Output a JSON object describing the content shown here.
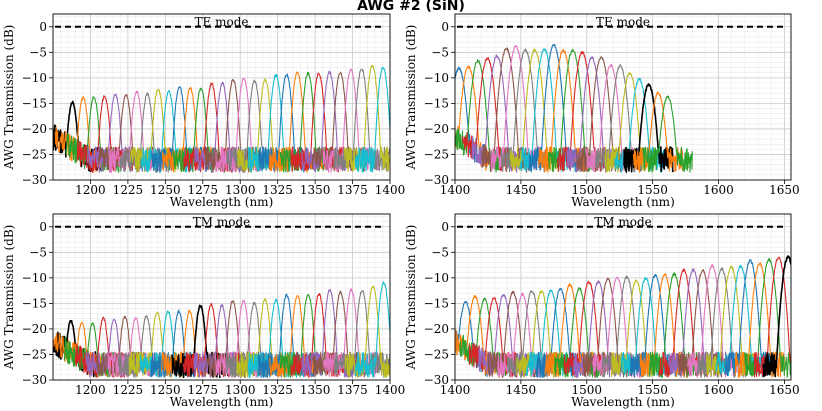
{
  "figure_title": "AWG #2 (SiN)",
  "chart_data": [
    {
      "type": "line",
      "title": "TE mode",
      "xlabel": "Wavelength (nm)",
      "ylabel": "AWG Transmission (dB)",
      "xlim": [
        1175,
        1400
      ],
      "ylim": [
        -30,
        2.5
      ],
      "xticks": [
        1200,
        1225,
        1250,
        1275,
        1300,
        1325,
        1350,
        1375,
        1400
      ],
      "yticks": [
        0,
        -5,
        -10,
        -15,
        -20,
        -25,
        -30
      ],
      "reference_line": 0,
      "channels": {
        "start": 1188,
        "spacing": 7.15,
        "count": 30,
        "width": 2.5,
        "peak_start": -14.5,
        "peak_end": -7.5,
        "edge_roll": 0,
        "highlight": [
          1188
        ],
        "floor": -26
      },
      "series": [
        {
          "name": "channels",
          "peaks": "generated from channels"
        }
      ]
    },
    {
      "type": "line",
      "title": "TE mode",
      "xlabel": "Wavelength (nm)",
      "ylabel": "AWG Transmission (dB)",
      "xlim": [
        1400,
        1655
      ],
      "ylim": [
        -30,
        2.5
      ],
      "xticks": [
        1400,
        1450,
        1500,
        1550,
        1600,
        1650
      ],
      "yticks": [
        0,
        -5,
        -10,
        -15,
        -20,
        -25,
        -30
      ],
      "reference_line": 0,
      "channels": {
        "start": 1403,
        "spacing": 7.2,
        "count": 23,
        "width": 3.8,
        "peak_start": -7.5,
        "peak_end": -14,
        "edge_roll": 1,
        "highlight": [
          1544
        ],
        "floor": -26
      },
      "series": [
        {
          "name": "channels",
          "peaks": "generated from channels"
        }
      ]
    },
    {
      "type": "line",
      "title": "TM mode",
      "xlabel": "Wavelength (nm)",
      "ylabel": "AWG Transmission (dB)",
      "xlim": [
        1175,
        1400
      ],
      "ylim": [
        -30,
        2.5
      ],
      "xticks": [
        1200,
        1225,
        1250,
        1275,
        1300,
        1325,
        1350,
        1375,
        1400
      ],
      "yticks": [
        0,
        -5,
        -10,
        -15,
        -20,
        -25,
        -30
      ],
      "reference_line": 0,
      "channels": {
        "start": 1187,
        "spacing": 7.2,
        "count": 30,
        "width": 2.5,
        "peak_start": -19,
        "peak_end": -11.5,
        "edge_roll": 0,
        "highlight": [
          1187,
          1275
        ],
        "floor": -27
      },
      "series": [
        {
          "name": "channels",
          "peaks": "generated from channels"
        }
      ]
    },
    {
      "type": "line",
      "title": "TM mode",
      "xlabel": "Wavelength (nm)",
      "ylabel": "AWG Transmission (dB)",
      "xlim": [
        1400,
        1655
      ],
      "ylim": [
        -30,
        2.5
      ],
      "xticks": [
        1400,
        1450,
        1500,
        1550,
        1600,
        1650
      ],
      "yticks": [
        0,
        -5,
        -10,
        -15,
        -20,
        -25,
        -30
      ],
      "reference_line": 0,
      "channels": {
        "start": 1408,
        "spacing": 7.2,
        "count": 35,
        "width": 3.6,
        "peak_start": -14.5,
        "peak_end": -6,
        "edge_roll": 0,
        "highlight": [
          1650
        ],
        "floor": -27
      },
      "series": [
        {
          "name": "channels",
          "peaks": "generated from channels"
        }
      ]
    }
  ],
  "palette": [
    "#1f77b4",
    "#ff7f0e",
    "#2ca02c",
    "#d62728",
    "#9467bd",
    "#8c564b",
    "#e377c2",
    "#7f7f7f",
    "#bcbd22",
    "#17becf"
  ],
  "highlight_color": "#000000",
  "reference_color": "#000000"
}
